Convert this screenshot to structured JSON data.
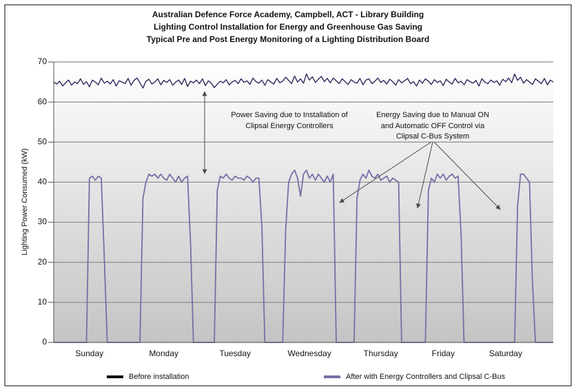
{
  "chart_data": {
    "type": "line",
    "title": [
      "Australian Defence Force Academy, Campbell, ACT - Library Building",
      "Lighting Control Installation for Energy and Greenhouse Gas Saving",
      "Typical Pre and Post Energy Monitoring of a Lighting Distribution Board"
    ],
    "ylabel": "Lighting Power Consumed (kW)",
    "annotations": [
      {
        "lines": [
          "Power Saving due to Installation of",
          "Clipsal Energy Controllers"
        ]
      },
      {
        "lines": [
          "Energy Saving due to Manual ON",
          "and Automatic OFF Control via",
          "Clipsal C-Bus System"
        ]
      }
    ],
    "x": [
      0,
      1,
      2,
      3,
      4,
      5,
      6,
      7,
      8,
      9,
      10,
      11,
      12,
      13,
      14,
      15,
      16,
      17,
      18,
      19,
      20,
      21,
      22,
      23,
      24,
      25,
      26,
      27,
      28,
      29,
      30,
      31,
      32,
      33,
      34,
      35,
      36,
      37,
      38,
      39,
      40,
      41,
      42,
      43,
      44,
      45,
      46,
      47,
      48,
      49,
      50,
      51,
      52,
      53,
      54,
      55,
      56,
      57,
      58,
      59,
      60,
      61,
      62,
      63,
      64,
      65,
      66,
      67,
      68,
      69,
      70,
      71,
      72,
      73,
      74,
      75,
      76,
      77,
      78,
      79,
      80,
      81,
      82,
      83,
      84,
      85,
      86,
      87,
      88,
      89,
      90,
      91,
      92,
      93,
      94,
      95,
      96,
      97,
      98,
      99,
      100,
      101,
      102,
      103,
      104,
      105,
      106,
      107,
      108,
      109,
      110,
      111,
      112,
      113,
      114,
      115,
      116,
      117,
      118,
      119,
      120,
      121,
      122,
      123,
      124,
      125,
      126,
      127,
      128,
      129,
      130,
      131,
      132,
      133,
      134,
      135,
      136,
      137,
      138,
      139,
      140,
      141,
      142,
      143,
      144,
      145,
      146,
      147,
      148,
      149,
      150,
      151,
      152,
      153,
      154,
      155,
      156,
      157,
      158,
      159,
      160,
      161,
      162,
      163,
      164,
      165,
      166,
      167,
      168
    ],
    "xlim": [
      0,
      168
    ],
    "xticks": [
      {
        "value": 12,
        "label": "Sunday"
      },
      {
        "value": 37,
        "label": "Monday"
      },
      {
        "value": 61,
        "label": "Tuesday"
      },
      {
        "value": 86,
        "label": "Wednesday"
      },
      {
        "value": 110,
        "label": "Thursday"
      },
      {
        "value": 131,
        "label": "Friday"
      },
      {
        "value": 152,
        "label": "Saturday"
      }
    ],
    "ylim": [
      0,
      70
    ],
    "yticks": [
      0,
      10,
      20,
      30,
      40,
      50,
      60,
      70
    ],
    "grid": true,
    "legend": "bottom",
    "series": [
      {
        "name": "Before installation",
        "color": "#2b2b5e",
        "legend_color": "#000000",
        "values": [
          65,
          64.5,
          65.2,
          64,
          64.8,
          65.5,
          64.2,
          65,
          64.6,
          65.8,
          64.4,
          65.1,
          63.8,
          65.5,
          65,
          64.3,
          66,
          64.7,
          65.2,
          64.5,
          65.6,
          64,
          65.3,
          65,
          64.6,
          65.9,
          64.2,
          65.4,
          66,
          64.8,
          63.5,
          65.2,
          65.7,
          64.5,
          65,
          65.8,
          64.3,
          65.4,
          64.9,
          65.6,
          64.2,
          65,
          65.5,
          64.4,
          65.9,
          63.9,
          65.2,
          64.8,
          65.5,
          64.6,
          65.8,
          64.1,
          65.3,
          64.7,
          63.6,
          64.5,
          65.2,
          64.8,
          65.6,
          64.3,
          65,
          65.4,
          64.6,
          65.8,
          64.9,
          65.3,
          64.4,
          66,
          65.1,
          64.7,
          65.5,
          64.2,
          65.6,
          65,
          64.5,
          65.9,
          64.8,
          65.2,
          66.2,
          65.4,
          64.6,
          66.5,
          65,
          65.8,
          64.7,
          67,
          65.5,
          66.3,
          64.9,
          65.7,
          66.4,
          65.1,
          65.9,
          64.8,
          66,
          65.3,
          64.6,
          65.8,
          65.1,
          64.4,
          65.6,
          65,
          64.7,
          65.9,
          64.3,
          65.5,
          65.8,
          64.6,
          65.2,
          66,
          64.9,
          65.4,
          64.5,
          65.7,
          65.1,
          64.2,
          65.6,
          64.8,
          65.3,
          65.9,
          64.6,
          65.1,
          64,
          65.5,
          64.7,
          65.8,
          65.2,
          64.4,
          65.6,
          64.9,
          65.3,
          64.1,
          65.7,
          65,
          64.5,
          65.9,
          64.8,
          65.2,
          64.3,
          65.6,
          65.1,
          64.7,
          65.4,
          64,
          65.8,
          65,
          64.6,
          65.5,
          64.9,
          65.3,
          64.2,
          65.7,
          65.1,
          66,
          64.8,
          67,
          65.4,
          66.2,
          64.7,
          65.6,
          65,
          64.4,
          65.8,
          65.2,
          64.6,
          65.9,
          64.3,
          65.5,
          65
        ]
      },
      {
        "name": "After with Energy Controllers and Clipsal C-Bus",
        "color": "#7470a6",
        "legend_color": "#7470a6",
        "values": [
          0,
          0,
          0,
          0,
          0,
          0,
          0,
          0,
          0,
          0,
          0,
          0,
          41,
          41.5,
          40.5,
          41.5,
          41,
          21,
          0,
          0,
          0,
          0,
          0,
          0,
          0,
          0,
          0,
          0,
          0,
          0,
          36,
          40,
          42,
          41.5,
          42,
          41,
          42,
          41,
          40.5,
          42,
          41,
          40,
          41.5,
          40,
          41,
          41.5,
          25,
          0,
          0,
          0,
          0,
          0,
          0,
          0,
          0,
          38,
          41.5,
          41,
          42,
          41,
          40.5,
          41.5,
          41,
          41,
          40.5,
          41.5,
          41,
          40,
          41,
          41,
          29,
          0,
          0,
          0,
          0,
          0,
          0,
          0,
          28,
          40,
          42,
          43,
          41,
          36.5,
          42,
          43,
          41,
          42,
          40.5,
          42,
          41,
          40,
          41.5,
          40,
          42,
          0,
          0,
          0,
          0,
          0,
          0,
          0,
          36,
          40.5,
          42,
          41,
          43,
          41.5,
          41,
          42,
          40.5,
          41,
          41.5,
          40,
          41,
          40.5,
          40,
          0,
          0,
          0,
          0,
          0,
          0,
          0,
          0,
          0,
          38,
          41,
          40,
          42,
          41,
          42,
          40.5,
          41.5,
          42,
          41,
          41.5,
          27,
          0,
          0,
          0,
          0,
          0,
          0,
          0,
          0,
          0,
          0,
          0,
          0,
          0,
          0,
          0,
          0,
          0,
          0,
          34,
          42,
          42,
          41,
          40,
          15,
          0,
          0,
          0,
          0,
          0,
          0,
          0
        ]
      }
    ]
  }
}
